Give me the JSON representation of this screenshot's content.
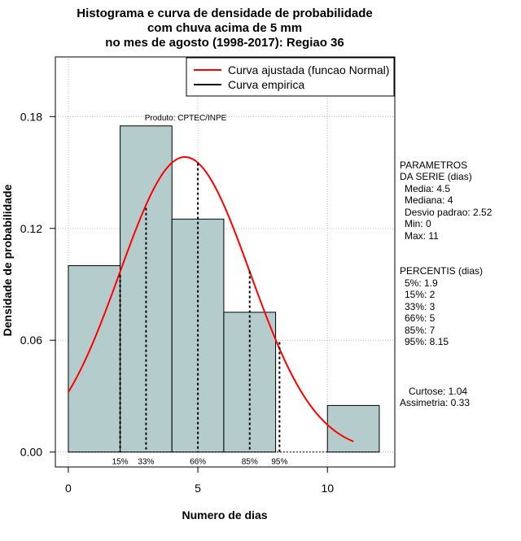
{
  "chart_data": {
    "type": "histogram",
    "title_lines": [
      "Histograma e curva de densidade de probabilidade",
      "com chuva acima de 5 mm",
      "no mes de agosto (1998-2017): Regiao 36"
    ],
    "xlabel": "Numero de dias",
    "ylabel": "Densidade de probabilidade",
    "xlim": [
      -0.5,
      12.6
    ],
    "ylim": [
      -0.008,
      0.212
    ],
    "x_ticks": [
      0,
      5,
      10
    ],
    "y_ticks": [
      0.0,
      0.06,
      0.12,
      0.18
    ],
    "y_tick_labels": [
      "0.00",
      "0.06",
      "0.12",
      "0.18"
    ],
    "grid": true,
    "bins": [
      {
        "x0": 0,
        "x1": 2,
        "density": 0.1
      },
      {
        "x0": 2,
        "x1": 4,
        "density": 0.175
      },
      {
        "x0": 4,
        "x1": 6,
        "density": 0.125
      },
      {
        "x0": 6,
        "x1": 8,
        "density": 0.075
      },
      {
        "x0": 8,
        "x1": 10,
        "density": 0.0
      },
      {
        "x0": 10,
        "x1": 12,
        "density": 0.025
      }
    ],
    "bar_color": "#b5cccc",
    "normal_fit": {
      "mean": 4.5,
      "sd": 2.52,
      "x_from": 0,
      "x_to": 11,
      "color": "#ff0000"
    },
    "percentile_lines": [
      {
        "label": "15%",
        "x": 2,
        "y": 0.095
      },
      {
        "label": "33%",
        "x": 3,
        "y": 0.131
      },
      {
        "label": "66%",
        "x": 5,
        "y": 0.155
      },
      {
        "label": "85%",
        "x": 7,
        "y": 0.097
      },
      {
        "label": "95%",
        "x": 8.15,
        "y": 0.059
      }
    ],
    "legend": {
      "position": "top-right",
      "entries": [
        {
          "label": "Curva ajustada (funcao Normal)",
          "color": "#ff0000"
        },
        {
          "label": "Curva empirica",
          "color": "#000000"
        }
      ]
    },
    "annotation": "Produto: CPTEC/INPE",
    "side_panel": {
      "parametros": [
        "PARAMETROS",
        "DA SERIE (dias)",
        "Media: 4.5",
        "Mediana: 4",
        "Desvio padrao: 2.52",
        "Min: 0",
        "Max: 11"
      ],
      "percentis": [
        "PERCENTIS (dias)",
        "5%: 1.9",
        "15%: 2",
        "33%: 3",
        "66%: 5",
        "85%: 7",
        "95%: 8.15"
      ],
      "forma": [
        "Curtose: 1.04",
        "Assimetria: 0.33"
      ]
    }
  }
}
